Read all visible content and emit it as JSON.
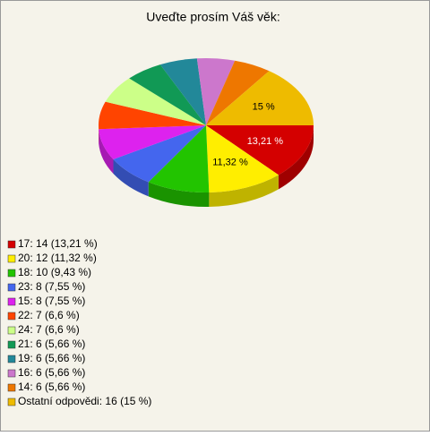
{
  "chart_data": {
    "type": "pie3d",
    "title": "Uveďte prosím Váš věk:",
    "categories": [
      "17: 14 (13,21 %)",
      "20: 12 (11,32 %)",
      "18: 10 (9,43 %)",
      "23: 8 (7,55 %)",
      "15: 8 (7,55 %)",
      "22: 7 (6,6 %)",
      "24: 7 (6,6 %)",
      "21: 6 (5,66 %)",
      "19: 6 (5,66 %)",
      "16: 6 (5,66 %)",
      "14: 6 (5,66 %)",
      "Ostatní odpovědi: 16 (15 %)"
    ],
    "values": [
      13.21,
      11.32,
      9.43,
      7.55,
      7.55,
      6.6,
      6.6,
      5.66,
      5.66,
      5.66,
      5.66,
      15
    ],
    "value_labels": [
      "13,21 %",
      "11,32 %",
      null,
      null,
      null,
      null,
      null,
      null,
      null,
      null,
      null,
      "15 %"
    ],
    "colors": [
      "#d40000",
      "#ffee00",
      "#22c400",
      "#4466ee",
      "#dd22ee",
      "#ff4400",
      "#ccff88",
      "#119955",
      "#228899",
      "#cc77cc",
      "#ee7700",
      "#eebb00"
    ]
  }
}
